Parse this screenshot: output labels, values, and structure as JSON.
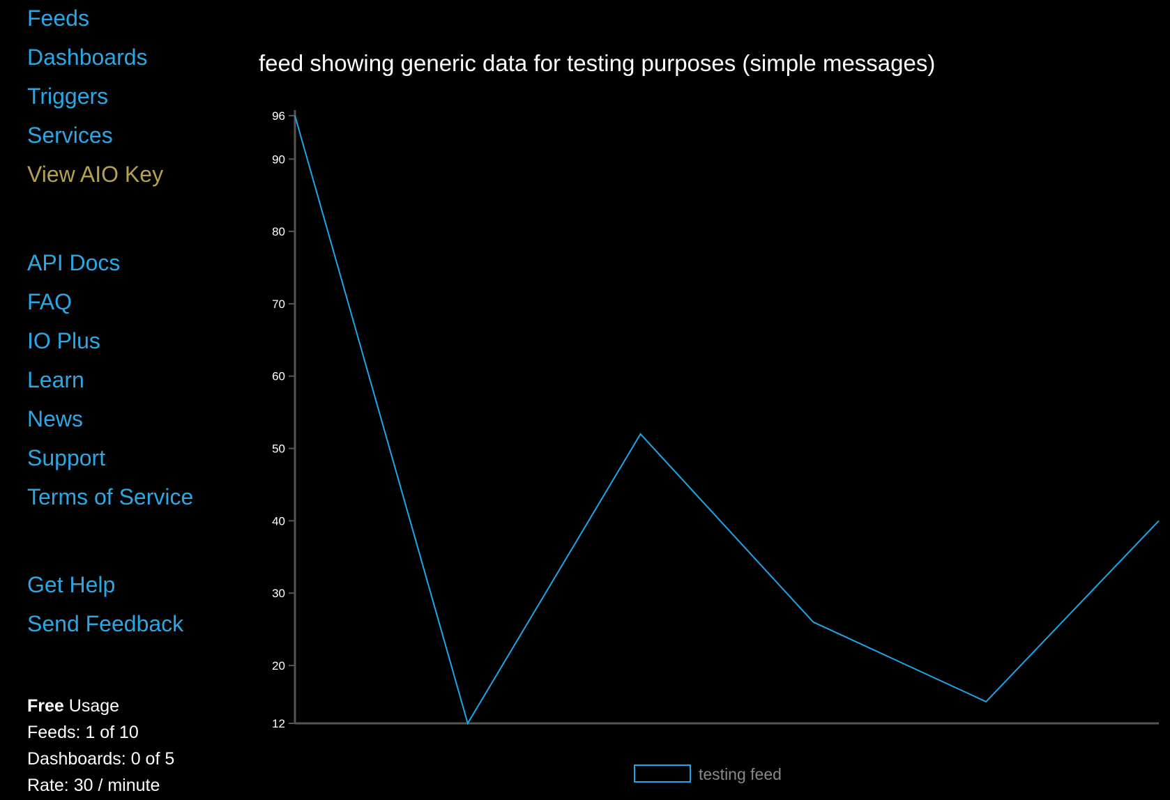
{
  "sidebar": {
    "nav_primary": [
      {
        "label": "Feeds"
      },
      {
        "label": "Dashboards"
      },
      {
        "label": "Triggers"
      },
      {
        "label": "Services"
      },
      {
        "label": "View AIO Key"
      }
    ],
    "nav_secondary": [
      {
        "label": "API Docs"
      },
      {
        "label": "FAQ"
      },
      {
        "label": "IO Plus"
      },
      {
        "label": "Learn"
      },
      {
        "label": "News"
      },
      {
        "label": "Support"
      },
      {
        "label": "Terms of Service"
      }
    ],
    "nav_help": [
      {
        "label": "Get Help"
      },
      {
        "label": "Send Feedback"
      }
    ],
    "usage": {
      "plan": "Free",
      "plan_suffix": " Usage",
      "feeds": "Feeds: 1 of 10",
      "dashboards": "Dashboards: 0 of 5",
      "rate": "Rate: 30 / minute"
    }
  },
  "colors": {
    "background": "#000000",
    "link": "#2aa8e6",
    "key_link": "#b5a24e",
    "series": "#1ea7e8",
    "axis": "#555555",
    "legend_text": "#8a8a8a"
  },
  "chart_data": {
    "type": "line",
    "title": "feed showing generic data for testing purposes (simple messages)",
    "xlabel": "",
    "ylabel": "",
    "ylim": [
      12,
      96
    ],
    "yticks": [
      12,
      20,
      30,
      40,
      50,
      60,
      70,
      80,
      90,
      96
    ],
    "grid": false,
    "legend_position": "bottom-center",
    "series": [
      {
        "name": "testing feed",
        "values": [
          96,
          12,
          52,
          26,
          15,
          40
        ]
      }
    ]
  }
}
